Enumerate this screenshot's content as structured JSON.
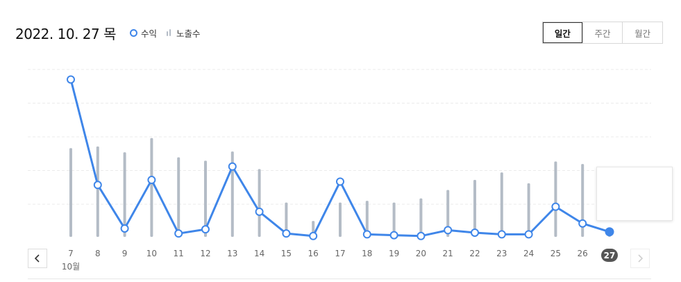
{
  "header": {
    "date": "2022. 10. 27 목",
    "legend": {
      "revenue": "수익",
      "impressions": "노출수"
    }
  },
  "tabs": [
    {
      "label": "일간",
      "active": true
    },
    {
      "label": "주간",
      "active": false
    },
    {
      "label": "월간",
      "active": false
    }
  ],
  "colors": {
    "line": "#3f86e9",
    "bar": "#b4bcc6",
    "grid": "#ebebeb",
    "selected_label_bg": "#555555"
  },
  "icons": {
    "prev": "chevron-left-icon",
    "next": "chevron-right-icon"
  },
  "chart_data": {
    "type": "line",
    "categories": [
      "7",
      "8",
      "9",
      "10",
      "11",
      "12",
      "13",
      "14",
      "15",
      "16",
      "17",
      "18",
      "19",
      "20",
      "21",
      "22",
      "23",
      "24",
      "25",
      "26",
      "27"
    ],
    "month_label": "10월",
    "selected_index": 20,
    "grid": true,
    "series": [
      {
        "name": "수익",
        "type": "line",
        "values": [
          9.4,
          3.1,
          0.5,
          3.4,
          0.2,
          0.45,
          4.2,
          1.5,
          0.2,
          0.05,
          3.3,
          0.15,
          0.1,
          0.05,
          0.4,
          0.25,
          0.15,
          0.15,
          1.8,
          0.8,
          0.3
        ]
      },
      {
        "name": "노출수",
        "type": "bar",
        "values": [
          5.3,
          5.4,
          5.05,
          5.9,
          4.75,
          4.55,
          5.1,
          4.05,
          2.05,
          0.95,
          2.05,
          2.15,
          2.05,
          2.3,
          2.8,
          3.4,
          3.85,
          3.2,
          4.5,
          4.35,
          0.55
        ]
      }
    ],
    "ylim": [
      0,
      10
    ]
  }
}
